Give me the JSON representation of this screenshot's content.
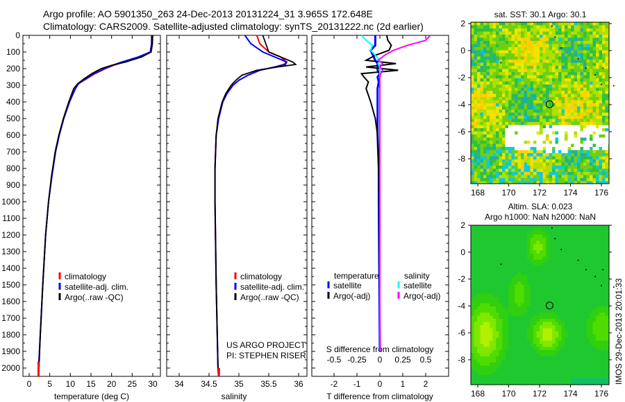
{
  "header": {
    "line1": "Argo profile: AO 5901350_263 24-Dec-2013 20131224_31 3.965S 172.648E",
    "line2": "Climatology: CARS2009. Satellite-adjusted climatology: synTS_20131222.nc (2d earlier)"
  },
  "side_stamp": "IMOS 29-Dec-2013 20:01:33",
  "colors": {
    "climatology": "#ff0000",
    "satellite": "#0000ff",
    "argo": "#000000",
    "sal_satellite": "#00ffff",
    "sal_argo": "#ff00ff"
  },
  "chart_data": [
    {
      "type": "line",
      "id": "temperature",
      "xlabel": "temperature (deg C)",
      "ylabel": "",
      "xlim": [
        -2,
        31
      ],
      "ylim": [
        2080,
        0
      ],
      "xticks": [
        0,
        5,
        10,
        15,
        20,
        25,
        30
      ],
      "yticks": [
        0,
        100,
        200,
        300,
        400,
        500,
        600,
        700,
        800,
        900,
        1000,
        1100,
        1200,
        1300,
        1400,
        1500,
        1600,
        1700,
        1800,
        1900,
        2000
      ],
      "depth": [
        0,
        50,
        100,
        130,
        160,
        180,
        200,
        230,
        260,
        290,
        320,
        400,
        500,
        600,
        700,
        850,
        1000,
        1200,
        1500,
        1800,
        2000,
        2080
      ],
      "legend": [
        "climatology",
        "satellite-adj. clim.",
        "Argo(..raw -QC)"
      ],
      "series": [
        {
          "name": "climatology",
          "values": [
            29.9,
            29.9,
            29.6,
            27,
            23,
            20.5,
            18.5,
            16,
            14,
            12,
            11.2,
            9.8,
            8.4,
            7.3,
            6.4,
            5.5,
            4.7,
            4,
            3.3,
            2.7,
            2.3,
            2.2
          ]
        },
        {
          "name": "satellite-adj. clim.",
          "values": [
            29.7,
            29.7,
            29.4,
            26.5,
            22.5,
            20.2,
            18.3,
            15.8,
            13.8,
            12,
            11.2,
            9.8,
            8.4,
            7.3,
            6.4,
            5.5,
            4.7,
            4,
            3.3,
            2.7,
            2.3,
            2.2
          ]
        },
        {
          "name": "Argo(..raw -QC)",
          "values": [
            30,
            29.9,
            29.6,
            27.3,
            23.5,
            20,
            17.5,
            15.2,
            13.4,
            11.8,
            10.8,
            9.6,
            8.3,
            7.2,
            6.3,
            5.4,
            4.7,
            4,
            3.3,
            2.7,
            2.4,
            null
          ]
        }
      ]
    },
    {
      "type": "line",
      "id": "salinity",
      "xlabel": "salinity",
      "xlim": [
        33.8,
        36.25
      ],
      "ylim": [
        2080,
        0
      ],
      "xticks": [
        "34",
        "34.5",
        "35",
        "35.5",
        "36"
      ],
      "depth": [
        0,
        50,
        100,
        130,
        160,
        175,
        190,
        210,
        240,
        270,
        300,
        350,
        400,
        500,
        600,
        800,
        1000,
        1500,
        2000,
        2080
      ],
      "legend": [
        "climatology",
        "satellite-adj. clim.",
        "Argo(..raw -QC)"
      ],
      "annotation": [
        "US ARGO PROJECT",
        "PI: STEPHEN RISER"
      ],
      "series": [
        {
          "name": "climatology",
          "values": [
            35.3,
            35.35,
            35.5,
            35.7,
            35.8,
            35.75,
            35.6,
            35.35,
            35.15,
            35.0,
            34.9,
            34.8,
            34.73,
            34.66,
            34.62,
            34.6,
            34.6,
            34.62,
            34.65,
            34.66
          ]
        },
        {
          "name": "satellite-adj. clim.",
          "values": [
            35.1,
            35.2,
            35.4,
            35.6,
            35.8,
            35.78,
            35.6,
            35.35,
            35.15,
            35.0,
            34.9,
            34.8,
            34.73,
            34.66,
            34.62,
            34.6,
            34.6,
            34.62,
            34.65,
            34.66
          ]
        },
        {
          "name": "Argo(..raw -QC)",
          "values": [
            35.4,
            35.45,
            35.5,
            35.7,
            35.9,
            35.95,
            35.65,
            35.3,
            35.05,
            34.95,
            34.87,
            34.78,
            34.72,
            34.65,
            34.62,
            34.6,
            34.6,
            34.62,
            34.65,
            null
          ]
        }
      ]
    },
    {
      "type": "line",
      "id": "difference",
      "xlabel": "T difference from climatology",
      "x2label": "S difference from climatology",
      "xlim": [
        -3,
        3
      ],
      "x2lim": [
        -0.75,
        0.75
      ],
      "ylim": [
        2080,
        0
      ],
      "xticks": [
        "-2",
        "-1",
        "0",
        "1",
        "2"
      ],
      "x2ticks": [
        "-0.5",
        "-0.25",
        "0",
        "0.25",
        "0.5"
      ],
      "depth": [
        0,
        30,
        60,
        90,
        120,
        150,
        170,
        190,
        210,
        230,
        250,
        280,
        320,
        400,
        500,
        600,
        800,
        1000,
        1500,
        1900
      ],
      "legend_t": {
        "title": "temperature",
        "items": [
          "satellite",
          "Argo(-adj)"
        ]
      },
      "legend_s": {
        "title": "salinity",
        "items": [
          "satellite",
          "Argo(-adj)"
        ]
      },
      "series": [
        {
          "name": "T satellite",
          "values": [
            -0.2,
            -0.2,
            -0.2,
            -0.4,
            -0.3,
            -0.2,
            -0.1,
            -0.1,
            -0.1,
            0,
            -0.1,
            -0.05,
            -0.1,
            -0.1,
            -0.1,
            -0.1,
            -0.05,
            -0.05,
            -0.02,
            0
          ]
        },
        {
          "name": "T Argo(-adj)",
          "values": [
            0.3,
            0.35,
            0.5,
            0.4,
            -0.2,
            -0.6,
            0.7,
            -0.6,
            0.8,
            -0.8,
            -0.7,
            -0.5,
            -0.6,
            -0.4,
            -0.2,
            -0.1,
            -0.05,
            -0.02,
            0,
            0
          ]
        },
        {
          "name": "S satellite",
          "values": [
            -0.2,
            -0.15,
            -0.08,
            -0.1,
            -0.05,
            0,
            -0.02,
            0,
            0,
            0,
            0,
            0,
            0,
            0,
            0,
            0,
            0,
            0,
            0,
            0
          ]
        },
        {
          "name": "S Argo(-adj)",
          "values": [
            0.55,
            0.5,
            0.3,
            0.15,
            0.05,
            -0.02,
            0.03,
            0,
            0.03,
            0.01,
            0,
            0,
            0,
            0,
            0,
            0,
            0,
            0,
            0,
            0
          ]
        }
      ]
    },
    {
      "type": "heatmap",
      "id": "sst_map",
      "title": "sat. SST: 30.1  Argo: 30.1",
      "xlim": [
        167.5,
        177.8
      ],
      "ylim": [
        -9.9,
        2
      ],
      "xticks": [
        "168",
        "170",
        "172",
        "174",
        "176"
      ],
      "yticks": [
        "2",
        "0",
        "-2",
        "-4",
        "-6",
        "-8"
      ],
      "marker": {
        "lon": 172.648,
        "lat": -3.965
      }
    },
    {
      "type": "heatmap",
      "id": "sla_map",
      "title": "Altim. SLA: 0.023",
      "subtitle": "Argo h1000: NaN h2000: NaN",
      "xlim": [
        167.5,
        177.8
      ],
      "ylim": [
        -9.9,
        2
      ],
      "xticks": [
        "168",
        "170",
        "172",
        "174",
        "176"
      ],
      "yticks": [
        "2",
        "0",
        "-2",
        "-4",
        "-6",
        "-8"
      ],
      "marker": {
        "lon": 172.648,
        "lat": -3.965
      }
    }
  ]
}
